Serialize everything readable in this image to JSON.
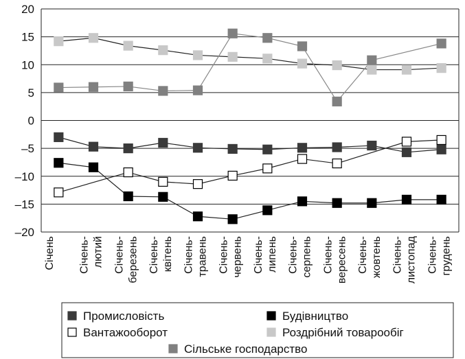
{
  "chart_data": {
    "type": "line",
    "title": "",
    "xlabel": "",
    "ylabel": "",
    "ylim": [
      -20,
      20
    ],
    "yticks": [
      20,
      15,
      10,
      5,
      0,
      -5,
      -10,
      -15,
      -20
    ],
    "ytick_labels": [
      "20",
      "15",
      "10",
      "5",
      "0",
      "–5",
      "–10",
      "–15",
      "–20"
    ],
    "grid": "horizontal",
    "legend_position": "bottom",
    "categories": [
      [
        "Січень"
      ],
      [
        "Січень-",
        "лютий"
      ],
      [
        "Січень-",
        "березень"
      ],
      [
        "Січень-",
        "квітень"
      ],
      [
        "Січень-",
        "травень"
      ],
      [
        "Січень-",
        "червень"
      ],
      [
        "Січень-",
        "липень"
      ],
      [
        "Січень-",
        "серпень"
      ],
      [
        "Січень-",
        "вересень"
      ],
      [
        "Січень-",
        "жовтень"
      ],
      [
        "Січень-",
        "листопад"
      ],
      [
        "Січень-",
        "грудень"
      ]
    ],
    "series": [
      {
        "name": "Промисловість",
        "color": "#3a3a3a",
        "marker_fill": "#3a3a3a",
        "marker_stroke": "#3a3a3a",
        "line_color": "#222222",
        "values": [
          -3.0,
          -4.7,
          -5.0,
          -4.0,
          -4.9,
          -5.1,
          -5.2,
          -4.9,
          -4.8,
          -4.5,
          -5.7,
          -5.2
        ]
      },
      {
        "name": "Будівництво",
        "color": "#000000",
        "marker_fill": "#000000",
        "marker_stroke": "#000000",
        "line_color": "#222222",
        "values": [
          -7.6,
          -8.4,
          -13.6,
          -13.7,
          -17.2,
          -17.7,
          -16.1,
          -14.5,
          -14.8,
          -14.8,
          -14.2,
          -14.2
        ]
      },
      {
        "name": "Вантажооборот",
        "color": "#ffffff",
        "marker_fill": "#ffffff",
        "marker_stroke": "#000000",
        "line_color": "#222222",
        "values": [
          -12.9,
          null,
          -9.3,
          -11.0,
          -11.4,
          -9.9,
          -8.6,
          -6.9,
          -7.7,
          null,
          -3.8,
          -3.5
        ]
      },
      {
        "name": "Роздрібний товарообіг",
        "color": "#c8c8c8",
        "marker_fill": "#c8c8c8",
        "marker_stroke": "#c8c8c8",
        "line_color": "#222222",
        "values": [
          14.2,
          14.8,
          13.4,
          12.6,
          11.7,
          11.4,
          11.1,
          10.2,
          9.9,
          9.1,
          9.1,
          9.4
        ]
      },
      {
        "name": "Сільське господарство",
        "color": "#808080",
        "marker_fill": "#808080",
        "marker_stroke": "#808080",
        "line_color": "#888888",
        "values": [
          5.9,
          6.0,
          6.1,
          5.3,
          5.4,
          15.6,
          14.8,
          13.3,
          3.4,
          10.8,
          null,
          13.8
        ]
      }
    ]
  }
}
